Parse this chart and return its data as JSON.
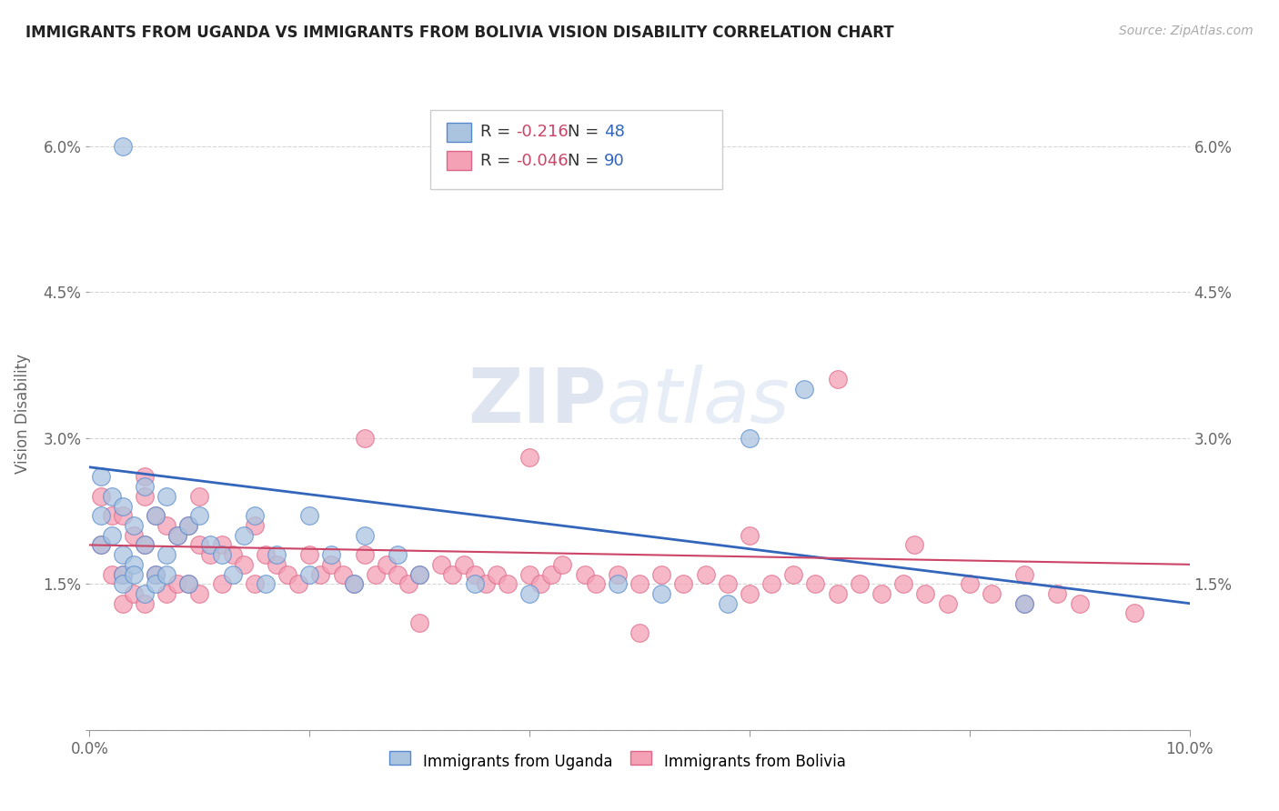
{
  "title": "IMMIGRANTS FROM UGANDA VS IMMIGRANTS FROM BOLIVIA VISION DISABILITY CORRELATION CHART",
  "source": "Source: ZipAtlas.com",
  "ylabel": "Vision Disability",
  "xlim": [
    0.0,
    0.1
  ],
  "ylim": [
    0.0,
    0.065
  ],
  "xticks": [
    0.0,
    0.02,
    0.04,
    0.06,
    0.08,
    0.1
  ],
  "xtick_labels": [
    "0.0%",
    "",
    "",
    "",
    "",
    "10.0%"
  ],
  "yticks": [
    0.0,
    0.015,
    0.03,
    0.045,
    0.06
  ],
  "ytick_labels": [
    "",
    "1.5%",
    "3.0%",
    "4.5%",
    "6.0%"
  ],
  "uganda_color": "#aac4e0",
  "bolivia_color": "#f4a0b5",
  "uganda_edge_color": "#5588cc",
  "bolivia_edge_color": "#dd6688",
  "uganda_line_color": "#3366bb",
  "bolivia_line_color": "#cc4466",
  "legend_uganda_r": "-0.216",
  "legend_uganda_n": "48",
  "legend_bolivia_r": "-0.046",
  "legend_bolivia_n": "90",
  "watermark_zip": "ZIP",
  "watermark_atlas": "atlas",
  "uganda_x": [
    0.001,
    0.001,
    0.001,
    0.002,
    0.002,
    0.003,
    0.003,
    0.003,
    0.004,
    0.004,
    0.005,
    0.005,
    0.006,
    0.006,
    0.007,
    0.007,
    0.008,
    0.009,
    0.01,
    0.011,
    0.012,
    0.014,
    0.015,
    0.017,
    0.02,
    0.022,
    0.025,
    0.028,
    0.003,
    0.004,
    0.005,
    0.006,
    0.007,
    0.009,
    0.013,
    0.016,
    0.02,
    0.024,
    0.03,
    0.035,
    0.04,
    0.048,
    0.052,
    0.058,
    0.003,
    0.06,
    0.065,
    0.085
  ],
  "uganda_y": [
    0.026,
    0.022,
    0.019,
    0.024,
    0.02,
    0.023,
    0.018,
    0.016,
    0.021,
    0.017,
    0.025,
    0.019,
    0.022,
    0.016,
    0.024,
    0.018,
    0.02,
    0.021,
    0.022,
    0.019,
    0.018,
    0.02,
    0.022,
    0.018,
    0.022,
    0.018,
    0.02,
    0.018,
    0.015,
    0.016,
    0.014,
    0.015,
    0.016,
    0.015,
    0.016,
    0.015,
    0.016,
    0.015,
    0.016,
    0.015,
    0.014,
    0.015,
    0.014,
    0.013,
    0.06,
    0.03,
    0.035,
    0.013
  ],
  "bolivia_x": [
    0.001,
    0.001,
    0.002,
    0.002,
    0.003,
    0.003,
    0.003,
    0.004,
    0.004,
    0.005,
    0.005,
    0.005,
    0.006,
    0.006,
    0.007,
    0.007,
    0.008,
    0.008,
    0.009,
    0.009,
    0.01,
    0.01,
    0.011,
    0.012,
    0.012,
    0.013,
    0.014,
    0.015,
    0.015,
    0.016,
    0.017,
    0.018,
    0.019,
    0.02,
    0.021,
    0.022,
    0.023,
    0.024,
    0.025,
    0.026,
    0.027,
    0.028,
    0.029,
    0.03,
    0.032,
    0.033,
    0.034,
    0.035,
    0.036,
    0.037,
    0.038,
    0.04,
    0.041,
    0.042,
    0.043,
    0.045,
    0.046,
    0.048,
    0.05,
    0.052,
    0.054,
    0.056,
    0.058,
    0.06,
    0.062,
    0.064,
    0.066,
    0.068,
    0.07,
    0.072,
    0.074,
    0.076,
    0.078,
    0.08,
    0.082,
    0.085,
    0.088,
    0.09,
    0.095,
    0.005,
    0.01,
    0.025,
    0.04,
    0.06,
    0.068,
    0.075,
    0.085,
    0.05,
    0.03
  ],
  "bolivia_y": [
    0.024,
    0.019,
    0.022,
    0.016,
    0.022,
    0.016,
    0.013,
    0.02,
    0.014,
    0.024,
    0.019,
    0.013,
    0.022,
    0.016,
    0.021,
    0.014,
    0.02,
    0.015,
    0.021,
    0.015,
    0.019,
    0.014,
    0.018,
    0.019,
    0.015,
    0.018,
    0.017,
    0.021,
    0.015,
    0.018,
    0.017,
    0.016,
    0.015,
    0.018,
    0.016,
    0.017,
    0.016,
    0.015,
    0.018,
    0.016,
    0.017,
    0.016,
    0.015,
    0.016,
    0.017,
    0.016,
    0.017,
    0.016,
    0.015,
    0.016,
    0.015,
    0.016,
    0.015,
    0.016,
    0.017,
    0.016,
    0.015,
    0.016,
    0.015,
    0.016,
    0.015,
    0.016,
    0.015,
    0.014,
    0.015,
    0.016,
    0.015,
    0.014,
    0.015,
    0.014,
    0.015,
    0.014,
    0.013,
    0.015,
    0.014,
    0.013,
    0.014,
    0.013,
    0.012,
    0.026,
    0.024,
    0.03,
    0.028,
    0.02,
    0.036,
    0.019,
    0.016,
    0.01,
    0.011
  ]
}
